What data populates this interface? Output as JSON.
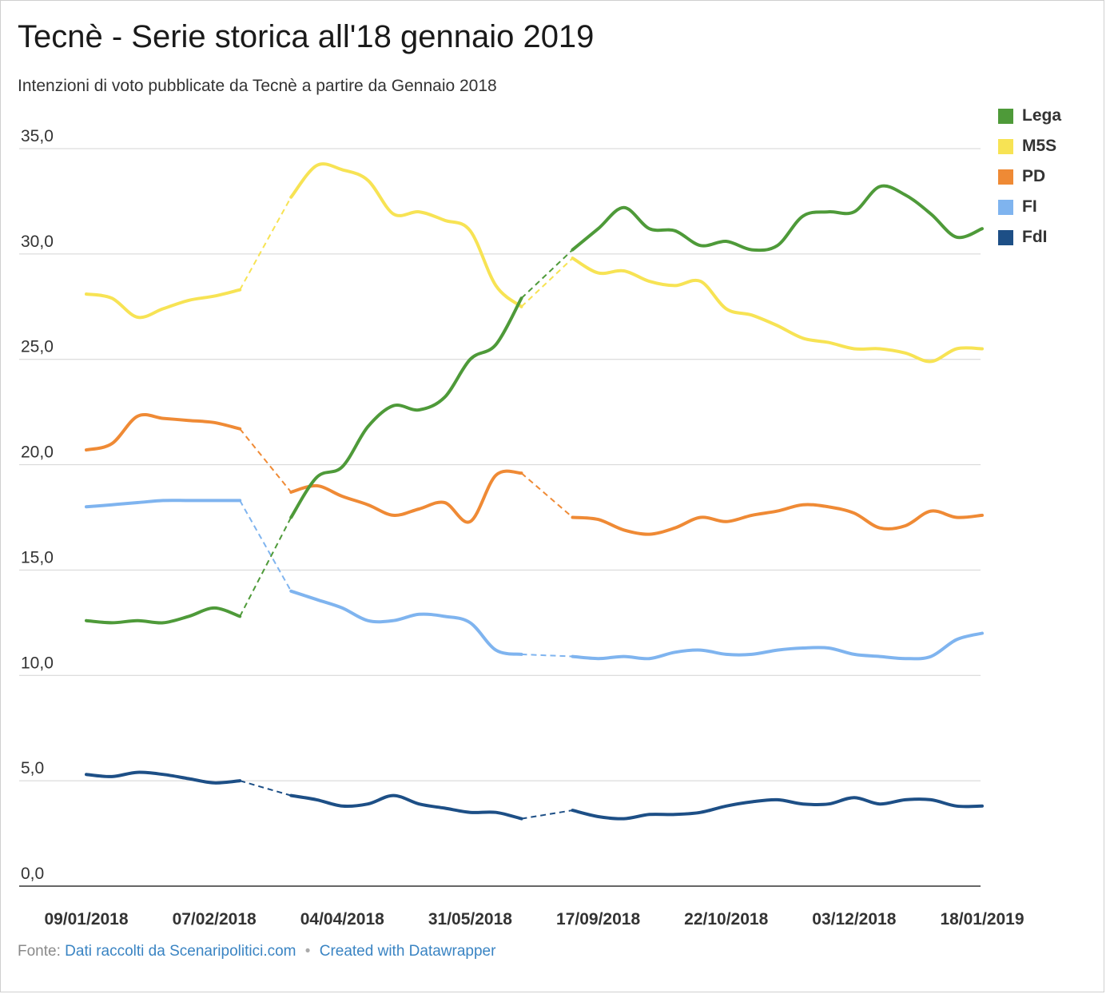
{
  "header": {
    "title": "Tecnè - Serie storica all'18 gennaio 2019",
    "subtitle": "Intenzioni di voto pubblicate da Tecnè a partire da Gennaio 2018"
  },
  "footer": {
    "source_prefix": "Fonte:",
    "source_link": "Dati raccolti da Scenaripolitici.com",
    "separator": "•",
    "credit_link": "Created with Datawrapper"
  },
  "chart_data": {
    "type": "line",
    "title": "Tecnè - Serie storica all'18 gennaio 2019",
    "subtitle": "Intenzioni di voto pubblicate da Tecnè a partire da Gennaio 2018",
    "ylim": [
      0,
      35
    ],
    "y_ticks": [
      "0,0",
      "5,0",
      "10,0",
      "15,0",
      "20,0",
      "25,0",
      "30,0",
      "35,0"
    ],
    "y_tick_values": [
      0,
      5,
      10,
      15,
      20,
      25,
      30,
      35
    ],
    "x_ticks": [
      "09/01/2018",
      "07/02/2018",
      "04/04/2018",
      "31/05/2018",
      "17/09/2018",
      "22/10/2018",
      "03/12/2018",
      "18/01/2019"
    ],
    "grid": true,
    "legend_position": "top-right",
    "series": [
      {
        "name": "Lega",
        "color": "#4e9a39",
        "segments": [
          [
            [
              0,
              12.6
            ],
            [
              1,
              12.5
            ],
            [
              2,
              12.6
            ],
            [
              3,
              12.5
            ],
            [
              4,
              12.8
            ],
            [
              5,
              13.2
            ],
            [
              6,
              12.8
            ]
          ],
          [
            [
              8,
              17.5
            ],
            [
              9,
              19.4
            ],
            [
              10,
              19.9
            ],
            [
              11,
              21.8
            ],
            [
              12,
              22.8
            ],
            [
              13,
              22.6
            ],
            [
              14,
              23.2
            ],
            [
              15,
              25.0
            ],
            [
              16,
              25.7
            ],
            [
              17,
              27.9
            ]
          ],
          [
            [
              19,
              30.2
            ],
            [
              20,
              31.2
            ],
            [
              21,
              32.2
            ],
            [
              22,
              31.2
            ],
            [
              23,
              31.1
            ],
            [
              24,
              30.4
            ],
            [
              25,
              30.6
            ],
            [
              26,
              30.2
            ],
            [
              27,
              30.4
            ],
            [
              28,
              31.8
            ],
            [
              29,
              32.0
            ],
            [
              30,
              32.0
            ],
            [
              31,
              33.2
            ],
            [
              32,
              32.8
            ],
            [
              33,
              31.9
            ],
            [
              34,
              30.8
            ],
            [
              35,
              31.2
            ]
          ]
        ],
        "dashed": [
          [
            [
              6,
              12.8
            ],
            [
              8,
              17.5
            ]
          ],
          [
            [
              17,
              27.9
            ],
            [
              19,
              30.2
            ]
          ]
        ]
      },
      {
        "name": "M5S",
        "color": "#f7e354",
        "segments": [
          [
            [
              0,
              28.1
            ],
            [
              1,
              27.9
            ],
            [
              2,
              27.0
            ],
            [
              3,
              27.4
            ],
            [
              4,
              27.8
            ],
            [
              5,
              28.0
            ],
            [
              6,
              28.3
            ]
          ],
          [
            [
              8,
              32.7
            ],
            [
              9,
              34.2
            ],
            [
              10,
              34.0
            ],
            [
              11,
              33.5
            ],
            [
              12,
              31.9
            ],
            [
              13,
              32.0
            ],
            [
              14,
              31.6
            ],
            [
              15,
              31.1
            ],
            [
              16,
              28.5
            ],
            [
              17,
              27.5
            ]
          ],
          [
            [
              19,
              29.8
            ],
            [
              20,
              29.1
            ],
            [
              21,
              29.2
            ],
            [
              22,
              28.7
            ],
            [
              23,
              28.5
            ],
            [
              24,
              28.7
            ],
            [
              25,
              27.4
            ],
            [
              26,
              27.1
            ],
            [
              27,
              26.6
            ],
            [
              28,
              26.0
            ],
            [
              29,
              25.8
            ],
            [
              30,
              25.5
            ],
            [
              31,
              25.5
            ],
            [
              32,
              25.3
            ],
            [
              33,
              24.9
            ],
            [
              34,
              25.5
            ],
            [
              35,
              25.5
            ]
          ]
        ],
        "dashed": [
          [
            [
              6,
              28.3
            ],
            [
              8,
              32.7
            ]
          ],
          [
            [
              17,
              27.5
            ],
            [
              19,
              29.8
            ]
          ]
        ]
      },
      {
        "name": "PD",
        "color": "#ef8a35",
        "segments": [
          [
            [
              0,
              20.7
            ],
            [
              1,
              21.0
            ],
            [
              2,
              22.3
            ],
            [
              3,
              22.2
            ],
            [
              4,
              22.1
            ],
            [
              5,
              22.0
            ],
            [
              6,
              21.7
            ]
          ],
          [
            [
              8,
              18.7
            ],
            [
              9,
              19.0
            ],
            [
              10,
              18.5
            ],
            [
              11,
              18.1
            ],
            [
              12,
              17.6
            ],
            [
              13,
              17.9
            ],
            [
              14,
              18.2
            ],
            [
              15,
              17.3
            ],
            [
              16,
              19.5
            ],
            [
              17,
              19.6
            ]
          ],
          [
            [
              19,
              17.5
            ],
            [
              20,
              17.4
            ],
            [
              21,
              16.9
            ],
            [
              22,
              16.7
            ],
            [
              23,
              17.0
            ],
            [
              24,
              17.5
            ],
            [
              25,
              17.3
            ],
            [
              26,
              17.6
            ],
            [
              27,
              17.8
            ],
            [
              28,
              18.1
            ],
            [
              29,
              18.0
            ],
            [
              30,
              17.7
            ],
            [
              31,
              17.0
            ],
            [
              32,
              17.1
            ],
            [
              33,
              17.8
            ],
            [
              34,
              17.5
            ],
            [
              35,
              17.6
            ]
          ]
        ],
        "dashed": [
          [
            [
              6,
              21.7
            ],
            [
              8,
              18.7
            ]
          ],
          [
            [
              17,
              19.6
            ],
            [
              19,
              17.5
            ]
          ]
        ]
      },
      {
        "name": "FI",
        "color": "#7fb4ef",
        "segments": [
          [
            [
              0,
              18.0
            ],
            [
              1,
              18.1
            ],
            [
              2,
              18.2
            ],
            [
              3,
              18.3
            ],
            [
              4,
              18.3
            ],
            [
              5,
              18.3
            ],
            [
              6,
              18.3
            ]
          ],
          [
            [
              8,
              14.0
            ],
            [
              9,
              13.6
            ],
            [
              10,
              13.2
            ],
            [
              11,
              12.6
            ],
            [
              12,
              12.6
            ],
            [
              13,
              12.9
            ],
            [
              14,
              12.8
            ],
            [
              15,
              12.5
            ],
            [
              16,
              11.2
            ],
            [
              17,
              11.0
            ]
          ],
          [
            [
              19,
              10.9
            ],
            [
              20,
              10.8
            ],
            [
              21,
              10.9
            ],
            [
              22,
              10.8
            ],
            [
              23,
              11.1
            ],
            [
              24,
              11.2
            ],
            [
              25,
              11.0
            ],
            [
              26,
              11.0
            ],
            [
              27,
              11.2
            ],
            [
              28,
              11.3
            ],
            [
              29,
              11.3
            ],
            [
              30,
              11.0
            ],
            [
              31,
              10.9
            ],
            [
              32,
              10.8
            ],
            [
              33,
              10.9
            ],
            [
              34,
              11.7
            ],
            [
              35,
              12.0
            ]
          ]
        ],
        "dashed": [
          [
            [
              6,
              18.3
            ],
            [
              8,
              14.0
            ]
          ],
          [
            [
              17,
              11.0
            ],
            [
              19,
              10.9
            ]
          ]
        ]
      },
      {
        "name": "FdI",
        "color": "#1d4f86",
        "segments": [
          [
            [
              0,
              5.3
            ],
            [
              1,
              5.2
            ],
            [
              2,
              5.4
            ],
            [
              3,
              5.3
            ],
            [
              4,
              5.1
            ],
            [
              5,
              4.9
            ],
            [
              6,
              5.0
            ]
          ],
          [
            [
              8,
              4.3
            ],
            [
              9,
              4.1
            ],
            [
              10,
              3.8
            ],
            [
              11,
              3.9
            ],
            [
              12,
              4.3
            ],
            [
              13,
              3.9
            ],
            [
              14,
              3.7
            ],
            [
              15,
              3.5
            ],
            [
              16,
              3.5
            ],
            [
              17,
              3.2
            ]
          ],
          [
            [
              19,
              3.6
            ],
            [
              20,
              3.3
            ],
            [
              21,
              3.2
            ],
            [
              22,
              3.4
            ],
            [
              23,
              3.4
            ],
            [
              24,
              3.5
            ],
            [
              25,
              3.8
            ],
            [
              26,
              4.0
            ],
            [
              27,
              4.1
            ],
            [
              28,
              3.9
            ],
            [
              29,
              3.9
            ],
            [
              30,
              4.2
            ],
            [
              31,
              3.9
            ],
            [
              32,
              4.1
            ],
            [
              33,
              4.1
            ],
            [
              34,
              3.8
            ],
            [
              35,
              3.8
            ]
          ]
        ],
        "dashed": [
          [
            [
              6,
              5.0
            ],
            [
              8,
              4.3
            ]
          ],
          [
            [
              17,
              3.2
            ],
            [
              19,
              3.6
            ]
          ]
        ]
      }
    ]
  }
}
